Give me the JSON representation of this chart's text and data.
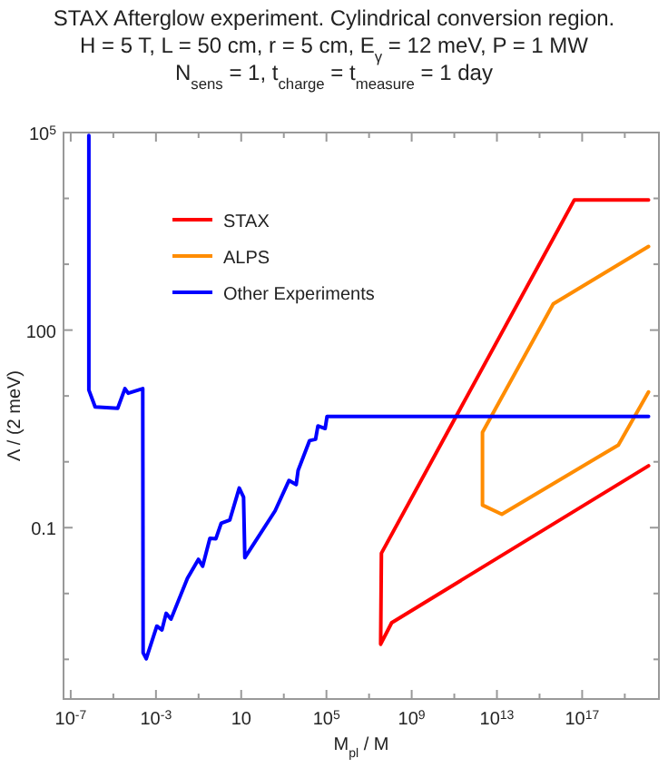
{
  "chart_data": {
    "type": "line",
    "title": "STAX Afterglow experiment. Cylindrical conversion region.",
    "subtitle": "H = 5 T, L = 50 cm, r = 5 cm, E$_{γ}$ = 12 meV, P = 1 MW\nN$_{sens}$ = 1, t$_{charge}$ = t$_{measure}$ = 1 day",
    "xlabel": "M$_{pl}$ / M",
    "ylabel": "Λ / (2 meV)",
    "log": "xy",
    "grid": false,
    "legend": "top left",
    "marker": "none",
    "line_style": "solid",
    "xlim": [
      4.6e-08,
      4e+20
    ],
    "ylim": [
      0.00025,
      100000
    ],
    "xticks": [
      {
        "value": 1e-07,
        "label": "10$^{-7}$"
      },
      {
        "value": 1e-05,
        "label": null
      },
      {
        "value": 0.001,
        "label": "10$^{-3}$"
      },
      {
        "value": 0.1,
        "label": null
      },
      10,
      {
        "value": 1000,
        "label": null
      },
      {
        "value": 100000,
        "label": "10$^{5}$"
      },
      {
        "value": 10000000.0,
        "label": null
      },
      {
        "value": 1000000000.0,
        "label": "10$^{9}$"
      },
      {
        "value": 100000000000.0,
        "label": null
      },
      {
        "value": 10000000000000.0,
        "label": "10$^{13}$"
      },
      {
        "value": 1000000000000000.0,
        "label": null
      },
      {
        "value": 1e+17,
        "label": "10$^{17}$"
      },
      {
        "value": 1e+19,
        "label": null
      }
    ],
    "yticks": [
      {
        "value": 0.001,
        "label": null
      },
      {
        "value": 0.01,
        "label": null
      },
      0.1,
      {
        "value": 1,
        "label": null
      },
      {
        "value": 10,
        "label": null
      },
      100,
      {
        "value": 1000,
        "label": null
      },
      {
        "value": 10000,
        "label": null
      },
      {
        "value": 100000,
        "label": "10$^{5}$"
      }
    ],
    "series": [
      {
        "name": "STAX",
        "color": "#ff0000",
        "x": [
          1.3e+20,
          115000000.0,
          35000000.0,
          38000000.0,
          4.3e+16,
          1.3e+20
        ],
        "values": [
          0.87,
          0.0036,
          0.0017,
          0.041,
          9500,
          9500
        ]
      },
      {
        "name": "ALPS",
        "color": "#ff8c00",
        "x": [
          1.3e+20,
          4400000000000000.0,
          2100000000000.0,
          2100000000000.0,
          17000000000000.0,
          5e+18,
          1.3e+20
        ],
        "values": [
          1860,
          250,
          2.8,
          0.22,
          0.16,
          1.8,
          11.5
        ]
      },
      {
        "name": "Other Experiments",
        "color": "#0000ff",
        "x": [
          7.1e-07,
          7.1e-07,
          1.4e-06,
          1.6e-05,
          3.5e-05,
          5e-05,
          0.00024,
          0.00025,
          0.00035,
          0.0011,
          0.0019,
          0.003,
          0.0051,
          0.03,
          0.098,
          0.155,
          0.34,
          0.65,
          1.15,
          2.9,
          8.1,
          12.9,
          14.8,
          389,
          1740,
          3800,
          4680,
          16200,
          30900,
          39800,
          87100,
          107000,
          1.3e+20
        ],
        "values": [
          90000,
          12.3,
          6.8,
          6.5,
          12.9,
          11,
          12.9,
          0.00126,
          0.00102,
          0.0032,
          0.0028,
          0.005,
          0.0041,
          0.017,
          0.033,
          0.026,
          0.069,
          0.068,
          0.117,
          0.13,
          0.4,
          0.29,
          0.035,
          0.18,
          0.52,
          0.45,
          0.74,
          2.1,
          2.2,
          3.5,
          3.2,
          4.9,
          4.9
        ]
      }
    ]
  }
}
